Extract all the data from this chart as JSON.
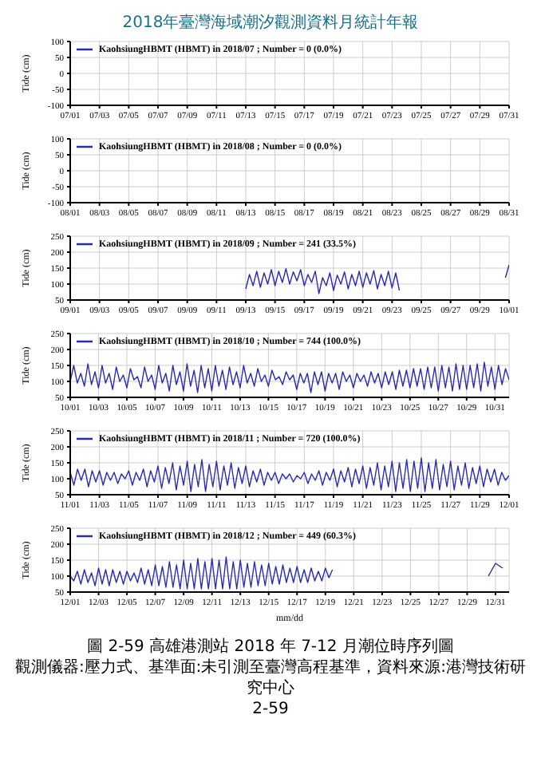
{
  "chart_data": [
    {
      "type": "line",
      "annotations": [
        "2018年臺灣海域潮汐觀測資料月統計年報"
      ],
      "ylabel": "Tide (cm)",
      "categories": [
        "07/01",
        null,
        "07/03",
        null,
        "07/05",
        null,
        "07/07",
        null,
        "07/09",
        null,
        "07/11",
        null,
        "07/13",
        null,
        "07/15",
        null,
        "07/17",
        null,
        "07/19",
        null,
        "07/21",
        null,
        "07/23",
        null,
        "07/25",
        null,
        "07/27",
        null,
        "07/29",
        null,
        "07/31"
      ],
      "ylim": [
        -100,
        100
      ],
      "yticks": [
        -100,
        -50,
        0,
        50,
        100
      ],
      "grid": true,
      "legend": "top left",
      "series": [
        {
          "name": "KaohsiungHBMT (HBMT) in 2018/07 ; Number = 0  (0.0%)",
          "color": "#2b2bb0",
          "values": [
            null,
            null,
            null,
            null,
            null,
            null,
            null,
            null,
            null,
            null,
            null,
            null,
            null,
            null,
            null,
            null,
            null,
            null,
            null,
            null,
            null,
            null,
            null,
            null,
            null,
            null,
            null,
            null,
            null,
            null,
            null
          ]
        }
      ]
    },
    {
      "type": "line",
      "ylabel": "Tide (cm)",
      "categories": [
        "08/01",
        null,
        "08/03",
        null,
        "08/05",
        null,
        "08/07",
        null,
        "08/09",
        null,
        "08/11",
        null,
        "08/13",
        null,
        "08/15",
        null,
        "08/17",
        null,
        "08/19",
        null,
        "08/21",
        null,
        "08/23",
        null,
        "08/25",
        null,
        "08/27",
        null,
        "08/29",
        null,
        "08/31"
      ],
      "ylim": [
        -100,
        100
      ],
      "yticks": [
        -100,
        -50,
        0,
        50,
        100
      ],
      "grid": true,
      "legend": "top left",
      "series": [
        {
          "name": "KaohsiungHBMT (HBMT) in 2018/08 ; Number = 0  (0.0%)",
          "color": "#2b2bb0",
          "values": [
            null,
            null,
            null,
            null,
            null,
            null,
            null,
            null,
            null,
            null,
            null,
            null,
            null,
            null,
            null,
            null,
            null,
            null,
            null,
            null,
            null,
            null,
            null,
            null,
            null,
            null,
            null,
            null,
            null,
            null,
            null
          ]
        }
      ]
    },
    {
      "type": "line",
      "ylabel": "Tide (cm)",
      "xlim": [
        "2018-09-01",
        "2018-10-01"
      ],
      "ylim": [
        50,
        250
      ],
      "yticks": [
        50,
        100,
        150,
        200,
        250
      ],
      "xticks": [
        {
          "value": "2018-09-01",
          "label": "09/01"
        },
        {
          "value": "2018-09-03",
          "label": "09/03"
        },
        {
          "value": "2018-09-05",
          "label": "09/05"
        },
        {
          "value": "2018-09-07",
          "label": "09/07"
        },
        {
          "value": "2018-09-09",
          "label": "09/09"
        },
        {
          "value": "2018-09-11",
          "label": "09/11"
        },
        {
          "value": "2018-09-13",
          "label": "09/13"
        },
        {
          "value": "2018-09-15",
          "label": "09/15"
        },
        {
          "value": "2018-09-17",
          "label": "09/17"
        },
        {
          "value": "2018-09-19",
          "label": "09/19"
        },
        {
          "value": "2018-09-21",
          "label": "09/21"
        },
        {
          "value": "2018-09-23",
          "label": "09/23"
        },
        {
          "value": "2018-09-25",
          "label": "09/25"
        },
        {
          "value": "2018-09-27",
          "label": "09/27"
        },
        {
          "value": "2018-09-29",
          "label": "09/29"
        },
        {
          "value": "2018-10-01",
          "label": "10/01"
        }
      ],
      "grid": true,
      "legend": "top left",
      "series": [
        {
          "name": "KaohsiungHBMT (HBMT) in 2018/09 ; Number = 241  (33.5%)",
          "color": "#2b2bb0",
          "x": [
            "2018-09-13T00:00",
            "2018-09-13T06:00",
            "2018-09-13T12:00",
            "2018-09-13T18:00",
            "2018-09-14T00:00",
            "2018-09-14T06:00",
            "2018-09-14T12:00",
            "2018-09-14T18:00",
            "2018-09-15T00:00",
            "2018-09-15T06:00",
            "2018-09-15T12:00",
            "2018-09-15T18:00",
            "2018-09-16T00:00",
            "2018-09-16T06:00",
            "2018-09-16T12:00",
            "2018-09-16T18:00",
            "2018-09-17T00:00",
            "2018-09-17T06:00",
            "2018-09-17T12:00",
            "2018-09-17T18:00",
            "2018-09-18T00:00",
            "2018-09-18T06:00",
            "2018-09-18T12:00",
            "2018-09-18T18:00",
            "2018-09-19T00:00",
            "2018-09-19T06:00",
            "2018-09-19T12:00",
            "2018-09-19T18:00",
            "2018-09-20T00:00",
            "2018-09-20T06:00",
            "2018-09-20T12:00",
            "2018-09-20T18:00",
            "2018-09-21T00:00",
            "2018-09-21T06:00",
            "2018-09-21T12:00",
            "2018-09-21T18:00",
            "2018-09-22T00:00",
            "2018-09-22T06:00",
            "2018-09-22T12:00",
            "2018-09-22T18:00",
            "2018-09-23T00:00",
            "2018-09-23T06:00",
            "2018-09-23T12:00",
            "2018-09-27T00:00",
            "2018-09-30T18:00",
            "2018-10-01T00:00"
          ],
          "values": [
            85,
            130,
            95,
            140,
            90,
            135,
            100,
            145,
            95,
            140,
            105,
            148,
            100,
            138,
            110,
            145,
            95,
            130,
            105,
            140,
            70,
            120,
            95,
            135,
            80,
            128,
            100,
            138,
            85,
            130,
            95,
            140,
            90,
            135,
            100,
            142,
            85,
            130,
            95,
            140,
            88,
            135,
            80,
            null,
            120,
            160
          ]
        }
      ]
    },
    {
      "type": "line",
      "ylabel": "Tide (cm)",
      "xlim": [
        "2018-10-01",
        "2018-11-01"
      ],
      "ylim": [
        50,
        250
      ],
      "yticks": [
        50,
        100,
        150,
        200,
        250
      ],
      "xticks": [
        {
          "value": "2018-10-01",
          "label": "10/01"
        },
        {
          "value": "2018-10-03",
          "label": "10/03"
        },
        {
          "value": "2018-10-05",
          "label": "10/05"
        },
        {
          "value": "2018-10-07",
          "label": "10/07"
        },
        {
          "value": "2018-10-09",
          "label": "10/09"
        },
        {
          "value": "2018-10-11",
          "label": "10/11"
        },
        {
          "value": "2018-10-13",
          "label": "10/13"
        },
        {
          "value": "2018-10-15",
          "label": "10/15"
        },
        {
          "value": "2018-10-17",
          "label": "10/17"
        },
        {
          "value": "2018-10-19",
          "label": "10/19"
        },
        {
          "value": "2018-10-21",
          "label": "10/21"
        },
        {
          "value": "2018-10-23",
          "label": "10/23"
        },
        {
          "value": "2018-10-25",
          "label": "10/25"
        },
        {
          "value": "2018-10-27",
          "label": "10/27"
        },
        {
          "value": "2018-10-29",
          "label": "10/29"
        },
        {
          "value": "2018-10-31",
          "label": "10/31"
        }
      ],
      "grid": true,
      "legend": "top left",
      "series": [
        {
          "name": "KaohsiungHBMT (HBMT) in 2018/10 ; Number = 744  (100.0%)",
          "color": "#2b2bb0",
          "x": [
            "2018-10-01T00:00",
            "2018-10-01T06:00",
            "2018-10-01T12:00",
            "2018-10-01T18:00",
            "2018-10-02T00:00",
            "2018-10-02T06:00",
            "2018-10-02T12:00",
            "2018-10-02T18:00",
            "2018-10-03T00:00",
            "2018-10-03T06:00",
            "2018-10-03T12:00",
            "2018-10-03T18:00",
            "2018-10-04T00:00",
            "2018-10-04T06:00",
            "2018-10-04T12:00",
            "2018-10-04T18:00",
            "2018-10-05T00:00",
            "2018-10-05T06:00",
            "2018-10-05T12:00",
            "2018-10-05T18:00",
            "2018-10-06T00:00",
            "2018-10-06T06:00",
            "2018-10-06T12:00",
            "2018-10-06T18:00",
            "2018-10-07T00:00",
            "2018-10-07T06:00",
            "2018-10-07T12:00",
            "2018-10-07T18:00",
            "2018-10-08T00:00",
            "2018-10-08T06:00",
            "2018-10-08T12:00",
            "2018-10-08T18:00",
            "2018-10-09T00:00",
            "2018-10-09T06:00",
            "2018-10-09T12:00",
            "2018-10-09T18:00",
            "2018-10-10T00:00",
            "2018-10-10T06:00",
            "2018-10-10T12:00",
            "2018-10-10T18:00",
            "2018-10-11T00:00",
            "2018-10-11T06:00",
            "2018-10-11T12:00",
            "2018-10-11T18:00",
            "2018-10-12T00:00",
            "2018-10-12T06:00",
            "2018-10-12T12:00",
            "2018-10-12T18:00",
            "2018-10-13T00:00",
            "2018-10-13T06:00",
            "2018-10-13T12:00",
            "2018-10-13T18:00",
            "2018-10-14T00:00",
            "2018-10-14T06:00",
            "2018-10-14T12:00",
            "2018-10-14T18:00",
            "2018-10-15T00:00",
            "2018-10-15T06:00",
            "2018-10-15T12:00",
            "2018-10-15T18:00",
            "2018-10-16T00:00",
            "2018-10-16T06:00",
            "2018-10-16T12:00",
            "2018-10-16T18:00",
            "2018-10-17T00:00",
            "2018-10-17T06:00",
            "2018-10-17T12:00",
            "2018-10-17T18:00",
            "2018-10-18T00:00",
            "2018-10-18T06:00",
            "2018-10-18T12:00",
            "2018-10-18T18:00",
            "2018-10-19T00:00",
            "2018-10-19T06:00",
            "2018-10-19T12:00",
            "2018-10-19T18:00",
            "2018-10-20T00:00",
            "2018-10-20T06:00",
            "2018-10-20T12:00",
            "2018-10-20T18:00",
            "2018-10-21T00:00",
            "2018-10-21T06:00",
            "2018-10-21T12:00",
            "2018-10-21T18:00",
            "2018-10-22T00:00",
            "2018-10-22T06:00",
            "2018-10-22T12:00",
            "2018-10-22T18:00",
            "2018-10-23T00:00",
            "2018-10-23T06:00",
            "2018-10-23T12:00",
            "2018-10-23T18:00",
            "2018-10-24T00:00",
            "2018-10-24T06:00",
            "2018-10-24T12:00",
            "2018-10-24T18:00",
            "2018-10-25T00:00",
            "2018-10-25T06:00",
            "2018-10-25T12:00",
            "2018-10-25T18:00",
            "2018-10-26T00:00",
            "2018-10-26T06:00",
            "2018-10-26T12:00",
            "2018-10-26T18:00",
            "2018-10-27T00:00",
            "2018-10-27T06:00",
            "2018-10-27T12:00",
            "2018-10-27T18:00",
            "2018-10-28T00:00",
            "2018-10-28T06:00",
            "2018-10-28T12:00",
            "2018-10-28T18:00",
            "2018-10-29T00:00",
            "2018-10-29T06:00",
            "2018-10-29T12:00",
            "2018-10-29T18:00",
            "2018-10-30T00:00",
            "2018-10-30T06:00",
            "2018-10-30T12:00",
            "2018-10-30T18:00",
            "2018-10-31T00:00",
            "2018-10-31T06:00",
            "2018-10-31T12:00",
            "2018-10-31T18:00",
            "2018-11-01T00:00"
          ],
          "values": [
            100,
            150,
            95,
            125,
            85,
            155,
            90,
            130,
            80,
            150,
            95,
            125,
            75,
            145,
            100,
            120,
            80,
            140,
            105,
            115,
            80,
            145,
            100,
            120,
            75,
            150,
            95,
            125,
            70,
            150,
            90,
            130,
            70,
            155,
            85,
            135,
            65,
            150,
            80,
            140,
            70,
            150,
            85,
            135,
            75,
            145,
            90,
            130,
            80,
            150,
            95,
            125,
            85,
            140,
            100,
            120,
            85,
            135,
            105,
            115,
            90,
            130,
            105,
            120,
            75,
            125,
            95,
            125,
            65,
            130,
            90,
            130,
            70,
            125,
            95,
            125,
            75,
            130,
            100,
            120,
            80,
            125,
            100,
            120,
            85,
            130,
            95,
            125,
            80,
            130,
            90,
            130,
            75,
            135,
            85,
            135,
            80,
            140,
            85,
            140,
            75,
            145,
            80,
            145,
            70,
            150,
            80,
            145,
            70,
            155,
            75,
            150,
            75,
            150,
            80,
            155,
            70,
            160,
            85,
            145,
            75,
            150,
            90,
            140,
            105
          ]
        }
      ]
    },
    {
      "type": "line",
      "ylabel": "Tide (cm)",
      "xlim": [
        "2018-11-01",
        "2018-12-01"
      ],
      "ylim": [
        50,
        250
      ],
      "yticks": [
        50,
        100,
        150,
        200,
        250
      ],
      "xticks": [
        {
          "value": "2018-11-01",
          "label": "11/01"
        },
        {
          "value": "2018-11-03",
          "label": "11/03"
        },
        {
          "value": "2018-11-05",
          "label": "11/05"
        },
        {
          "value": "2018-11-07",
          "label": "11/07"
        },
        {
          "value": "2018-11-09",
          "label": "11/09"
        },
        {
          "value": "2018-11-11",
          "label": "11/11"
        },
        {
          "value": "2018-11-13",
          "label": "11/13"
        },
        {
          "value": "2018-11-15",
          "label": "11/15"
        },
        {
          "value": "2018-11-17",
          "label": "11/17"
        },
        {
          "value": "2018-11-19",
          "label": "11/19"
        },
        {
          "value": "2018-11-21",
          "label": "11/21"
        },
        {
          "value": "2018-11-23",
          "label": "11/23"
        },
        {
          "value": "2018-11-25",
          "label": "11/25"
        },
        {
          "value": "2018-11-27",
          "label": "11/27"
        },
        {
          "value": "2018-11-29",
          "label": "11/29"
        },
        {
          "value": "2018-12-01",
          "label": "12/01"
        }
      ],
      "grid": true,
      "legend": "top left",
      "series": [
        {
          "name": "KaohsiungHBMT (HBMT) in 2018/11 ; Number = 720  (100.0%)",
          "color": "#2b2bb0",
          "x": [
            "2018-11-01T00:00",
            "2018-11-01T06:00",
            "2018-11-01T12:00",
            "2018-11-01T18:00",
            "2018-11-02T00:00",
            "2018-11-02T06:00",
            "2018-11-02T12:00",
            "2018-11-02T18:00",
            "2018-11-03T00:00",
            "2018-11-03T06:00",
            "2018-11-03T12:00",
            "2018-11-03T18:00",
            "2018-11-04T00:00",
            "2018-11-04T06:00",
            "2018-11-04T12:00",
            "2018-11-04T18:00",
            "2018-11-05T00:00",
            "2018-11-05T06:00",
            "2018-11-05T12:00",
            "2018-11-05T18:00",
            "2018-11-06T00:00",
            "2018-11-06T06:00",
            "2018-11-06T12:00",
            "2018-11-06T18:00",
            "2018-11-07T00:00",
            "2018-11-07T06:00",
            "2018-11-07T12:00",
            "2018-11-07T18:00",
            "2018-11-08T00:00",
            "2018-11-08T06:00",
            "2018-11-08T12:00",
            "2018-11-08T18:00",
            "2018-11-09T00:00",
            "2018-11-09T06:00",
            "2018-11-09T12:00",
            "2018-11-09T18:00",
            "2018-11-10T00:00",
            "2018-11-10T06:00",
            "2018-11-10T12:00",
            "2018-11-10T18:00",
            "2018-11-11T00:00",
            "2018-11-11T06:00",
            "2018-11-11T12:00",
            "2018-11-11T18:00",
            "2018-11-12T00:00",
            "2018-11-12T06:00",
            "2018-11-12T12:00",
            "2018-11-12T18:00",
            "2018-11-13T00:00",
            "2018-11-13T06:00",
            "2018-11-13T12:00",
            "2018-11-13T18:00",
            "2018-11-14T00:00",
            "2018-11-14T06:00",
            "2018-11-14T12:00",
            "2018-11-14T18:00",
            "2018-11-15T00:00",
            "2018-11-15T06:00",
            "2018-11-15T12:00",
            "2018-11-15T18:00",
            "2018-11-16T00:00",
            "2018-11-16T06:00",
            "2018-11-16T12:00",
            "2018-11-16T18:00",
            "2018-11-17T00:00",
            "2018-11-17T06:00",
            "2018-11-17T12:00",
            "2018-11-17T18:00",
            "2018-11-18T00:00",
            "2018-11-18T06:00",
            "2018-11-18T12:00",
            "2018-11-18T18:00",
            "2018-11-19T00:00",
            "2018-11-19T06:00",
            "2018-11-19T12:00",
            "2018-11-19T18:00",
            "2018-11-20T00:00",
            "2018-11-20T06:00",
            "2018-11-20T12:00",
            "2018-11-20T18:00",
            "2018-11-21T00:00",
            "2018-11-21T06:00",
            "2018-11-21T12:00",
            "2018-11-21T18:00",
            "2018-11-22T00:00",
            "2018-11-22T06:00",
            "2018-11-22T12:00",
            "2018-11-22T18:00",
            "2018-11-23T00:00",
            "2018-11-23T06:00",
            "2018-11-23T12:00",
            "2018-11-23T18:00",
            "2018-11-24T00:00",
            "2018-11-24T06:00",
            "2018-11-24T12:00",
            "2018-11-24T18:00",
            "2018-11-25T00:00",
            "2018-11-25T06:00",
            "2018-11-25T12:00",
            "2018-11-25T18:00",
            "2018-11-26T00:00",
            "2018-11-26T06:00",
            "2018-11-26T12:00",
            "2018-11-26T18:00",
            "2018-11-27T00:00",
            "2018-11-27T06:00",
            "2018-11-27T12:00",
            "2018-11-27T18:00",
            "2018-11-28T00:00",
            "2018-11-28T06:00",
            "2018-11-28T12:00",
            "2018-11-28T18:00",
            "2018-11-29T00:00",
            "2018-11-29T06:00",
            "2018-11-29T12:00",
            "2018-11-29T18:00",
            "2018-11-30T00:00",
            "2018-11-30T06:00",
            "2018-11-30T12:00",
            "2018-11-30T18:00",
            "2018-12-01T00:00"
          ],
          "values": [
            120,
            80,
            130,
            95,
            130,
            75,
            125,
            90,
            125,
            80,
            120,
            95,
            120,
            85,
            115,
            100,
            125,
            80,
            120,
            95,
            130,
            75,
            125,
            90,
            140,
            70,
            135,
            85,
            150,
            65,
            140,
            80,
            155,
            60,
            145,
            75,
            160,
            60,
            145,
            75,
            155,
            65,
            140,
            80,
            150,
            70,
            135,
            85,
            140,
            75,
            125,
            90,
            130,
            80,
            120,
            95,
            120,
            85,
            115,
            100,
            115,
            90,
            110,
            100,
            120,
            85,
            115,
            95,
            125,
            80,
            120,
            95,
            130,
            75,
            125,
            90,
            135,
            75,
            130,
            85,
            140,
            70,
            135,
            80,
            150,
            65,
            140,
            75,
            155,
            60,
            150,
            70,
            160,
            60,
            155,
            70,
            165,
            60,
            150,
            70,
            160,
            65,
            145,
            75,
            155,
            65,
            140,
            80,
            150,
            70,
            135,
            85,
            140,
            75,
            130,
            90,
            130,
            80,
            120,
            95,
            110
          ]
        }
      ]
    },
    {
      "type": "line",
      "ylabel": "Tide (cm)",
      "xlabel": "mm/dd",
      "annotations": [
        "圖 2-59  高雄港測站 2018 年 7-12 月潮位時序列圖",
        "觀測儀器:壓力式、基準面:未引測至臺灣高程基準，資料來源:港灣技術研究中心",
        "2-59"
      ],
      "xlim": [
        "2018-12-01",
        "2018-12-31T23:00"
      ],
      "ylim": [
        50,
        250
      ],
      "yticks": [
        50,
        100,
        150,
        200,
        250
      ],
      "xticks": [
        {
          "value": "2018-12-01",
          "label": "12/01"
        },
        {
          "value": "2018-12-03",
          "label": "12/03"
        },
        {
          "value": "2018-12-05",
          "label": "12/05"
        },
        {
          "value": "2018-12-07",
          "label": "12/07"
        },
        {
          "value": "2018-12-09",
          "label": "12/09"
        },
        {
          "value": "2018-12-11",
          "label": "12/11"
        },
        {
          "value": "2018-12-13",
          "label": "12/13"
        },
        {
          "value": "2018-12-15",
          "label": "12/15"
        },
        {
          "value": "2018-12-17",
          "label": "12/17"
        },
        {
          "value": "2018-12-19",
          "label": "12/19"
        },
        {
          "value": "2018-12-21",
          "label": "12/21"
        },
        {
          "value": "2018-12-23",
          "label": "12/23"
        },
        {
          "value": "2018-12-25",
          "label": "12/25"
        },
        {
          "value": "2018-12-27",
          "label": "12/27"
        },
        {
          "value": "2018-12-29",
          "label": "12/29"
        },
        {
          "value": "2018-12-31",
          "label": "12/31"
        }
      ],
      "grid": true,
      "legend": "top left",
      "series": [
        {
          "name": "KaohsiungHBMT (HBMT) in 2018/12 ; Number = 449  (60.3%)",
          "color": "#2b2bb0",
          "x": [
            "2018-12-01T00:00",
            "2018-12-01T06:00",
            "2018-12-01T12:00",
            "2018-12-01T18:00",
            "2018-12-02T00:00",
            "2018-12-02T06:00",
            "2018-12-02T12:00",
            "2018-12-02T18:00",
            "2018-12-03T00:00",
            "2018-12-03T06:00",
            "2018-12-03T12:00",
            "2018-12-03T18:00",
            "2018-12-04T00:00",
            "2018-12-04T06:00",
            "2018-12-04T12:00",
            "2018-12-04T18:00",
            "2018-12-05T00:00",
            "2018-12-05T06:00",
            "2018-12-05T12:00",
            "2018-12-05T18:00",
            "2018-12-06T00:00",
            "2018-12-06T06:00",
            "2018-12-06T12:00",
            "2018-12-06T18:00",
            "2018-12-07T00:00",
            "2018-12-07T06:00",
            "2018-12-07T12:00",
            "2018-12-07T18:00",
            "2018-12-08T00:00",
            "2018-12-08T06:00",
            "2018-12-08T12:00",
            "2018-12-08T18:00",
            "2018-12-09T00:00",
            "2018-12-09T06:00",
            "2018-12-09T12:00",
            "2018-12-09T18:00",
            "2018-12-10T00:00",
            "2018-12-10T06:00",
            "2018-12-10T12:00",
            "2018-12-10T18:00",
            "2018-12-11T00:00",
            "2018-12-11T06:00",
            "2018-12-11T12:00",
            "2018-12-11T18:00",
            "2018-12-12T00:00",
            "2018-12-12T06:00",
            "2018-12-12T12:00",
            "2018-12-12T18:00",
            "2018-12-13T00:00",
            "2018-12-13T06:00",
            "2018-12-13T12:00",
            "2018-12-13T18:00",
            "2018-12-14T00:00",
            "2018-12-14T06:00",
            "2018-12-14T12:00",
            "2018-12-14T18:00",
            "2018-12-15T00:00",
            "2018-12-15T06:00",
            "2018-12-15T12:00",
            "2018-12-15T18:00",
            "2018-12-16T00:00",
            "2018-12-16T06:00",
            "2018-12-16T12:00",
            "2018-12-16T18:00",
            "2018-12-17T00:00",
            "2018-12-17T06:00",
            "2018-12-17T12:00",
            "2018-12-17T18:00",
            "2018-12-18T00:00",
            "2018-12-18T06:00",
            "2018-12-18T12:00",
            "2018-12-18T18:00",
            "2018-12-19T00:00",
            "2018-12-19T06:00",
            "2018-12-19T12:00",
            "2018-12-25T00:00",
            "2018-12-30T12:00",
            "2018-12-31T00:00",
            "2018-12-31T12:00"
          ],
          "values": [
            100,
            85,
            115,
            75,
            120,
            80,
            110,
            70,
            125,
            75,
            120,
            70,
            120,
            80,
            115,
            75,
            115,
            85,
            110,
            80,
            125,
            75,
            120,
            70,
            135,
            70,
            130,
            65,
            145,
            65,
            135,
            60,
            150,
            60,
            140,
            60,
            155,
            60,
            145,
            60,
            155,
            60,
            150,
            60,
            160,
            60,
            145,
            60,
            150,
            65,
            140,
            65,
            145,
            70,
            135,
            70,
            140,
            75,
            130,
            75,
            135,
            80,
            125,
            80,
            130,
            80,
            120,
            80,
            125,
            85,
            115,
            85,
            125,
            95,
            120,
            null,
            100,
            140,
            125
          ]
        }
      ]
    }
  ]
}
